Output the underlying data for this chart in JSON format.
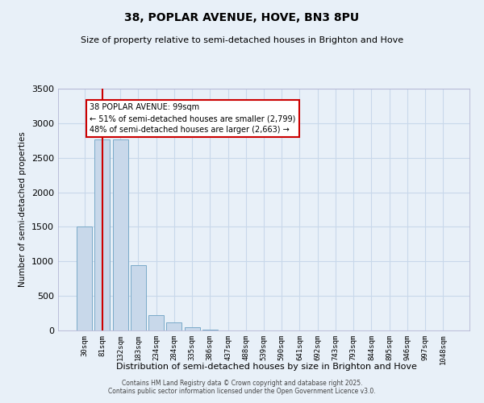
{
  "title_line1": "38, POPLAR AVENUE, HOVE, BN3 8PU",
  "title_line2": "Size of property relative to semi-detached houses in Brighton and Hove",
  "xlabel": "Distribution of semi-detached houses by size in Brighton and Hove",
  "ylabel": "Number of semi-detached properties",
  "categories": [
    "30sqm",
    "81sqm",
    "132sqm",
    "183sqm",
    "234sqm",
    "284sqm",
    "335sqm",
    "386sqm",
    "437sqm",
    "488sqm",
    "539sqm",
    "590sqm",
    "641sqm",
    "692sqm",
    "743sqm",
    "793sqm",
    "844sqm",
    "895sqm",
    "946sqm",
    "997sqm",
    "1048sqm"
  ],
  "values": [
    1500,
    2760,
    2760,
    950,
    220,
    120,
    50,
    10,
    5,
    2,
    1,
    0,
    0,
    0,
    0,
    0,
    0,
    0,
    0,
    0,
    0
  ],
  "bar_color": "#c8d8ea",
  "bar_edge_color": "#7aaac8",
  "grid_color": "#c8d8ea",
  "background_color": "#e8f0f8",
  "ylim": [
    0,
    3500
  ],
  "yticks": [
    0,
    500,
    1000,
    1500,
    2000,
    2500,
    3000,
    3500
  ],
  "property_bin_index": 1,
  "red_line_color": "#cc0000",
  "annotation_text_line1": "38 POPLAR AVENUE: 99sqm",
  "annotation_text_line2": "← 51% of semi-detached houses are smaller (2,799)",
  "annotation_text_line3": "48% of semi-detached houses are larger (2,663) →",
  "annotation_box_color": "#ffffff",
  "annotation_box_edge": "#cc0000",
  "footer_line1": "Contains HM Land Registry data © Crown copyright and database right 2025.",
  "footer_line2": "Contains public sector information licensed under the Open Government Licence v3.0."
}
